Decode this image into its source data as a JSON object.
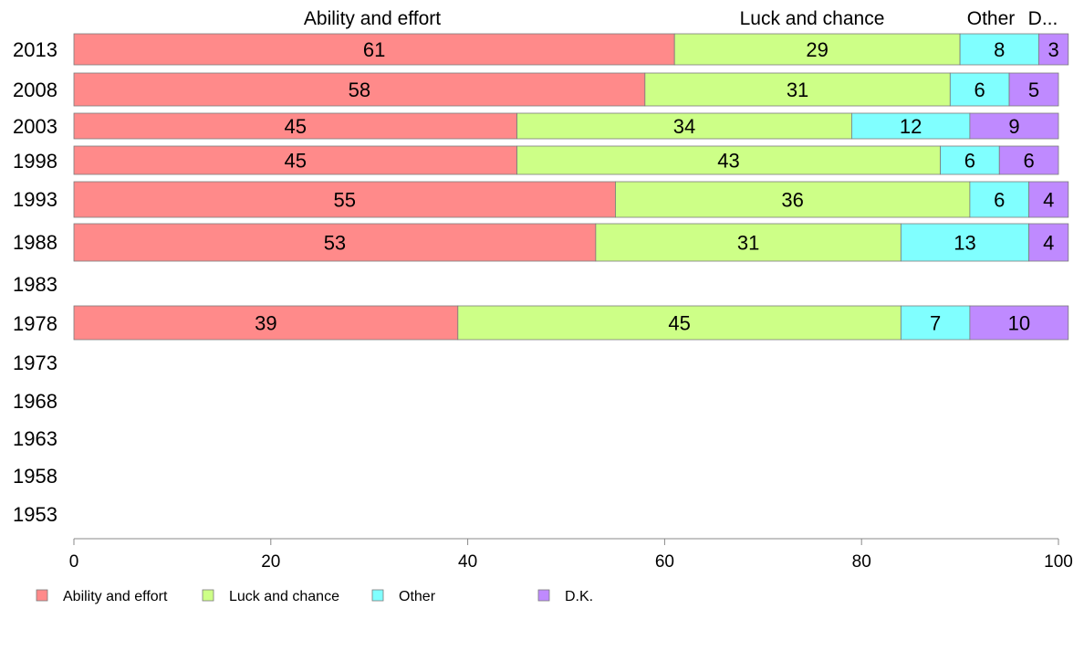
{
  "chart_data": {
    "type": "bar",
    "orientation": "horizontal",
    "stacked": true,
    "categories": [
      "2013",
      "2008",
      "2003",
      "1998",
      "1993",
      "1988",
      "1983",
      "1978",
      "1973",
      "1968",
      "1963",
      "1958",
      "1953"
    ],
    "series": [
      {
        "name": "Ability and effort",
        "color": "#ff8a8a",
        "values": [
          61,
          58,
          45,
          45,
          55,
          53,
          null,
          39,
          null,
          null,
          null,
          null,
          null
        ]
      },
      {
        "name": "Luck and chance",
        "color": "#cdff87",
        "values": [
          29,
          31,
          34,
          43,
          36,
          31,
          null,
          45,
          null,
          null,
          null,
          null,
          null
        ]
      },
      {
        "name": "Other",
        "color": "#80ffff",
        "values": [
          8,
          6,
          12,
          6,
          6,
          13,
          null,
          7,
          null,
          null,
          null,
          null,
          null
        ]
      },
      {
        "name": "D.K.",
        "color": "#bf8aff",
        "values": [
          3,
          5,
          9,
          6,
          4,
          4,
          null,
          10,
          null,
          null,
          null,
          null,
          null
        ]
      }
    ],
    "top_labels": [
      "Ability and effort",
      "Luck and chance",
      "Other",
      "D..."
    ],
    "xlim": [
      0,
      100
    ],
    "xticks": [
      "0",
      "20",
      "40",
      "60",
      "80",
      "100"
    ],
    "grid": false,
    "legend_position": "bottom-left"
  }
}
